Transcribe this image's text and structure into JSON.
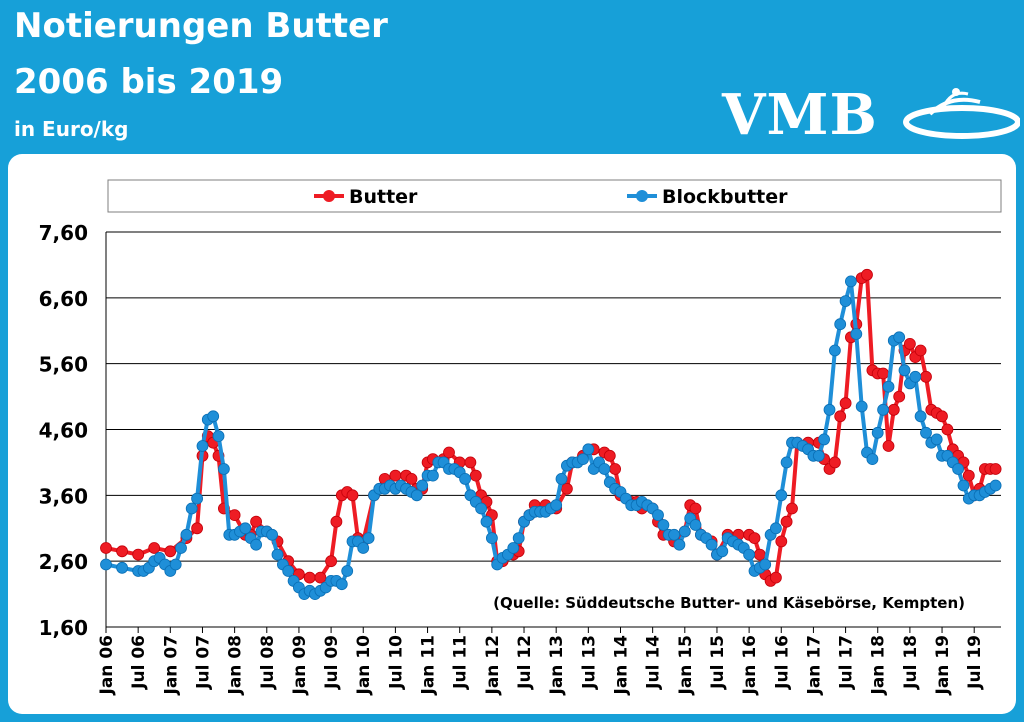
{
  "header": {
    "title_line1": "Notierungen Butter",
    "title_line2": "2006 bis 2019",
    "unit": "in Euro/kg",
    "logo_text": "VMB"
  },
  "colors": {
    "frame": "#17a0d8",
    "butter": "#ee1c24",
    "blockbutter": "#1f8fd8"
  },
  "chart_data": {
    "type": "line",
    "title": "Notierungen Butter 2006 bis 2019",
    "ylabel": "in Euro/kg",
    "ylim": [
      1.6,
      7.6
    ],
    "yticks": [
      "1,60",
      "2,60",
      "3,60",
      "4,60",
      "5,60",
      "6,60",
      "7,60"
    ],
    "ytick_values": [
      1.6,
      2.6,
      3.6,
      4.6,
      5.6,
      6.6,
      7.6
    ],
    "xlim": [
      0,
      167
    ],
    "xticks": [
      {
        "label": "Jan 06",
        "x": 0
      },
      {
        "label": "Jul 06",
        "x": 6
      },
      {
        "label": "Jan 07",
        "x": 12
      },
      {
        "label": "Jul 07",
        "x": 18
      },
      {
        "label": "Jan 08",
        "x": 24
      },
      {
        "label": "Jul 08",
        "x": 30
      },
      {
        "label": "Jan 09",
        "x": 36
      },
      {
        "label": "Jul 09",
        "x": 42
      },
      {
        "label": "Jan 10",
        "x": 48
      },
      {
        "label": "Jul 10",
        "x": 54
      },
      {
        "label": "Jan 11",
        "x": 60
      },
      {
        "label": "Jul 11",
        "x": 66
      },
      {
        "label": "Jan 12",
        "x": 72
      },
      {
        "label": "Jul 12",
        "x": 78
      },
      {
        "label": "Jan 13",
        "x": 84
      },
      {
        "label": "Jul 13",
        "x": 90
      },
      {
        "label": "Jan 14",
        "x": 96
      },
      {
        "label": "Jul 14",
        "x": 102
      },
      {
        "label": "Jan 15",
        "x": 108
      },
      {
        "label": "Jul 15",
        "x": 114
      },
      {
        "label": "Jan 16",
        "x": 120
      },
      {
        "label": "Jul 16",
        "x": 126
      },
      {
        "label": "Jan 17",
        "x": 132
      },
      {
        "label": "Jul 17",
        "x": 138
      },
      {
        "label": "Jan 18",
        "x": 144
      },
      {
        "label": "Jul 18",
        "x": 150
      },
      {
        "label": "Jan 19",
        "x": 156
      },
      {
        "label": "Jul 19",
        "x": 162
      }
    ],
    "grid": "horizontal",
    "legend": "top-center",
    "source_note": "(Quelle: Süddeutsche Butter- und Käsebörse, Kempten)",
    "series": [
      {
        "name": "Butter",
        "color": "#ee1c24",
        "points": [
          [
            0,
            2.8
          ],
          [
            3,
            2.75
          ],
          [
            6,
            2.7
          ],
          [
            9,
            2.8
          ],
          [
            12,
            2.75
          ],
          [
            15,
            2.95
          ],
          [
            17,
            3.1
          ],
          [
            18,
            4.2
          ],
          [
            19,
            4.5
          ],
          [
            20,
            4.4
          ],
          [
            21,
            4.2
          ],
          [
            22,
            3.4
          ],
          [
            24,
            3.3
          ],
          [
            26,
            3.0
          ],
          [
            27,
            3.0
          ],
          [
            28,
            3.2
          ],
          [
            30,
            3.05
          ],
          [
            32,
            2.9
          ],
          [
            34,
            2.6
          ],
          [
            36,
            2.4
          ],
          [
            38,
            2.35
          ],
          [
            40,
            2.35
          ],
          [
            42,
            2.6
          ],
          [
            43,
            3.2
          ],
          [
            44,
            3.6
          ],
          [
            45,
            3.65
          ],
          [
            46,
            3.6
          ],
          [
            47,
            2.95
          ],
          [
            48,
            2.9
          ],
          [
            50,
            3.6
          ],
          [
            52,
            3.85
          ],
          [
            54,
            3.9
          ],
          [
            56,
            3.9
          ],
          [
            57,
            3.85
          ],
          [
            58,
            3.7
          ],
          [
            59,
            3.7
          ],
          [
            60,
            4.1
          ],
          [
            61,
            4.15
          ],
          [
            63,
            4.15
          ],
          [
            64,
            4.25
          ],
          [
            66,
            4.1
          ],
          [
            68,
            4.1
          ],
          [
            69,
            3.9
          ],
          [
            70,
            3.6
          ],
          [
            71,
            3.5
          ],
          [
            72,
            3.3
          ],
          [
            73,
            2.6
          ],
          [
            74,
            2.6
          ],
          [
            76,
            2.7
          ],
          [
            77,
            2.75
          ],
          [
            78,
            3.2
          ],
          [
            79,
            3.3
          ],
          [
            80,
            3.45
          ],
          [
            82,
            3.45
          ],
          [
            84,
            3.4
          ],
          [
            86,
            3.7
          ],
          [
            87,
            4.1
          ],
          [
            89,
            4.2
          ],
          [
            91,
            4.3
          ],
          [
            93,
            4.25
          ],
          [
            94,
            4.2
          ],
          [
            95,
            4.0
          ],
          [
            96,
            3.6
          ],
          [
            98,
            3.5
          ],
          [
            99,
            3.5
          ],
          [
            100,
            3.4
          ],
          [
            102,
            3.4
          ],
          [
            103,
            3.2
          ],
          [
            104,
            3.0
          ],
          [
            106,
            2.9
          ],
          [
            108,
            3.05
          ],
          [
            109,
            3.45
          ],
          [
            110,
            3.4
          ],
          [
            111,
            3.0
          ],
          [
            113,
            2.9
          ],
          [
            114,
            2.7
          ],
          [
            116,
            3.0
          ],
          [
            118,
            3.0
          ],
          [
            120,
            3.0
          ],
          [
            121,
            2.95
          ],
          [
            122,
            2.7
          ],
          [
            123,
            2.4
          ],
          [
            124,
            2.3
          ],
          [
            125,
            2.35
          ],
          [
            126,
            2.9
          ],
          [
            127,
            3.2
          ],
          [
            128,
            3.4
          ],
          [
            129,
            4.4
          ],
          [
            131,
            4.4
          ],
          [
            133,
            4.4
          ],
          [
            134,
            4.15
          ],
          [
            135,
            4.0
          ],
          [
            136,
            4.1
          ],
          [
            137,
            4.8
          ],
          [
            138,
            5.0
          ],
          [
            139,
            6.0
          ],
          [
            140,
            6.2
          ],
          [
            141,
            6.9
          ],
          [
            142,
            6.95
          ],
          [
            143,
            5.5
          ],
          [
            144,
            5.45
          ],
          [
            145,
            5.45
          ],
          [
            146,
            4.35
          ],
          [
            147,
            4.9
          ],
          [
            148,
            5.1
          ],
          [
            149,
            5.8
          ],
          [
            150,
            5.9
          ],
          [
            151,
            5.7
          ],
          [
            152,
            5.8
          ],
          [
            153,
            5.4
          ],
          [
            154,
            4.9
          ],
          [
            155,
            4.85
          ],
          [
            156,
            4.8
          ],
          [
            157,
            4.6
          ],
          [
            158,
            4.3
          ],
          [
            159,
            4.2
          ],
          [
            160,
            4.1
          ],
          [
            161,
            3.9
          ],
          [
            162,
            3.6
          ],
          [
            163,
            3.7
          ],
          [
            164,
            4.0
          ],
          [
            165,
            4.0
          ],
          [
            166,
            4.0
          ]
        ]
      },
      {
        "name": "Blockbutter",
        "color": "#1f8fd8",
        "points": [
          [
            0,
            2.55
          ],
          [
            3,
            2.5
          ],
          [
            6,
            2.45
          ],
          [
            7,
            2.45
          ],
          [
            8,
            2.5
          ],
          [
            9,
            2.6
          ],
          [
            10,
            2.65
          ],
          [
            11,
            2.55
          ],
          [
            12,
            2.45
          ],
          [
            13,
            2.55
          ],
          [
            14,
            2.8
          ],
          [
            15,
            3.0
          ],
          [
            16,
            3.4
          ],
          [
            17,
            3.55
          ],
          [
            18,
            4.35
          ],
          [
            19,
            4.75
          ],
          [
            20,
            4.8
          ],
          [
            21,
            4.5
          ],
          [
            22,
            4.0
          ],
          [
            23,
            3.0
          ],
          [
            24,
            3.0
          ],
          [
            25,
            3.05
          ],
          [
            26,
            3.1
          ],
          [
            27,
            2.95
          ],
          [
            28,
            2.85
          ],
          [
            29,
            3.05
          ],
          [
            30,
            3.05
          ],
          [
            31,
            3.0
          ],
          [
            32,
            2.7
          ],
          [
            33,
            2.55
          ],
          [
            34,
            2.45
          ],
          [
            35,
            2.3
          ],
          [
            36,
            2.2
          ],
          [
            37,
            2.1
          ],
          [
            38,
            2.15
          ],
          [
            39,
            2.1
          ],
          [
            40,
            2.15
          ],
          [
            41,
            2.2
          ],
          [
            42,
            2.3
          ],
          [
            43,
            2.3
          ],
          [
            44,
            2.25
          ],
          [
            45,
            2.45
          ],
          [
            46,
            2.9
          ],
          [
            47,
            2.9
          ],
          [
            48,
            2.8
          ],
          [
            49,
            2.95
          ],
          [
            50,
            3.6
          ],
          [
            51,
            3.7
          ],
          [
            52,
            3.7
          ],
          [
            53,
            3.75
          ],
          [
            54,
            3.7
          ],
          [
            55,
            3.75
          ],
          [
            56,
            3.7
          ],
          [
            57,
            3.65
          ],
          [
            58,
            3.6
          ],
          [
            59,
            3.75
          ],
          [
            60,
            3.9
          ],
          [
            61,
            3.9
          ],
          [
            62,
            4.1
          ],
          [
            63,
            4.1
          ],
          [
            64,
            4.0
          ],
          [
            65,
            4.0
          ],
          [
            66,
            3.95
          ],
          [
            67,
            3.85
          ],
          [
            68,
            3.6
          ],
          [
            69,
            3.5
          ],
          [
            70,
            3.4
          ],
          [
            71,
            3.2
          ],
          [
            72,
            2.95
          ],
          [
            73,
            2.55
          ],
          [
            74,
            2.65
          ],
          [
            75,
            2.7
          ],
          [
            76,
            2.8
          ],
          [
            77,
            2.95
          ],
          [
            78,
            3.2
          ],
          [
            79,
            3.3
          ],
          [
            80,
            3.35
          ],
          [
            81,
            3.35
          ],
          [
            82,
            3.35
          ],
          [
            83,
            3.4
          ],
          [
            84,
            3.45
          ],
          [
            85,
            3.85
          ],
          [
            86,
            4.05
          ],
          [
            87,
            4.1
          ],
          [
            88,
            4.1
          ],
          [
            89,
            4.15
          ],
          [
            90,
            4.3
          ],
          [
            91,
            4.0
          ],
          [
            92,
            4.1
          ],
          [
            93,
            4.0
          ],
          [
            94,
            3.8
          ],
          [
            95,
            3.7
          ],
          [
            96,
            3.65
          ],
          [
            97,
            3.55
          ],
          [
            98,
            3.45
          ],
          [
            99,
            3.45
          ],
          [
            100,
            3.5
          ],
          [
            101,
            3.45
          ],
          [
            102,
            3.4
          ],
          [
            103,
            3.3
          ],
          [
            104,
            3.15
          ],
          [
            105,
            3.0
          ],
          [
            106,
            3.0
          ],
          [
            107,
            2.85
          ],
          [
            108,
            3.05
          ],
          [
            109,
            3.25
          ],
          [
            110,
            3.15
          ],
          [
            111,
            3.0
          ],
          [
            112,
            2.95
          ],
          [
            113,
            2.85
          ],
          [
            114,
            2.7
          ],
          [
            115,
            2.75
          ],
          [
            116,
            2.95
          ],
          [
            117,
            2.9
          ],
          [
            118,
            2.85
          ],
          [
            119,
            2.8
          ],
          [
            120,
            2.7
          ],
          [
            121,
            2.45
          ],
          [
            122,
            2.5
          ],
          [
            123,
            2.55
          ],
          [
            124,
            3.0
          ],
          [
            125,
            3.1
          ],
          [
            126,
            3.6
          ],
          [
            127,
            4.1
          ],
          [
            128,
            4.4
          ],
          [
            129,
            4.4
          ],
          [
            130,
            4.35
          ],
          [
            131,
            4.3
          ],
          [
            132,
            4.2
          ],
          [
            133,
            4.2
          ],
          [
            134,
            4.45
          ],
          [
            135,
            4.9
          ],
          [
            136,
            5.8
          ],
          [
            137,
            6.2
          ],
          [
            138,
            6.55
          ],
          [
            139,
            6.85
          ],
          [
            140,
            6.05
          ],
          [
            141,
            4.95
          ],
          [
            142,
            4.25
          ],
          [
            143,
            4.15
          ],
          [
            144,
            4.55
          ],
          [
            145,
            4.9
          ],
          [
            146,
            5.25
          ],
          [
            147,
            5.95
          ],
          [
            148,
            6.0
          ],
          [
            149,
            5.5
          ],
          [
            150,
            5.3
          ],
          [
            151,
            5.4
          ],
          [
            152,
            4.8
          ],
          [
            153,
            4.55
          ],
          [
            154,
            4.4
          ],
          [
            155,
            4.45
          ],
          [
            156,
            4.2
          ],
          [
            157,
            4.2
          ],
          [
            158,
            4.1
          ],
          [
            159,
            4.0
          ],
          [
            160,
            3.75
          ],
          [
            161,
            3.55
          ],
          [
            162,
            3.6
          ],
          [
            163,
            3.6
          ],
          [
            164,
            3.65
          ],
          [
            165,
            3.7
          ],
          [
            166,
            3.75
          ]
        ]
      }
    ]
  }
}
